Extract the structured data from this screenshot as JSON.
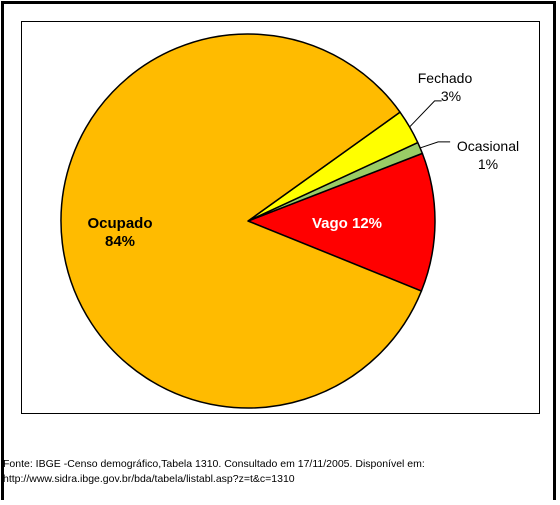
{
  "chart_data": {
    "type": "pie",
    "title": "",
    "slices": [
      {
        "label": "Vago",
        "value": 12,
        "display": "Vago 12%",
        "color": "#FF0000"
      },
      {
        "label": "Ocasional",
        "value": 1,
        "display_name": "Ocasional",
        "display_pct": "1%",
        "color": "#99CC66"
      },
      {
        "label": "Fechado",
        "value": 3,
        "display_name": "Fechado",
        "display_pct": "3%",
        "color": "#FFFF00"
      },
      {
        "label": "Ocupado",
        "value": 84,
        "display_name": "Ocupado",
        "display_pct": "84%",
        "color": "#FFBB00"
      }
    ]
  },
  "source": {
    "line1": "Fonte: IBGE -Censo demográfico,Tabela 1310. Consultado em 17/11/2005. Disponível em:",
    "line2": "http://www.sidra.ibge.gov.br/bda/tabela/listabl.asp?z=t&c=1310"
  }
}
